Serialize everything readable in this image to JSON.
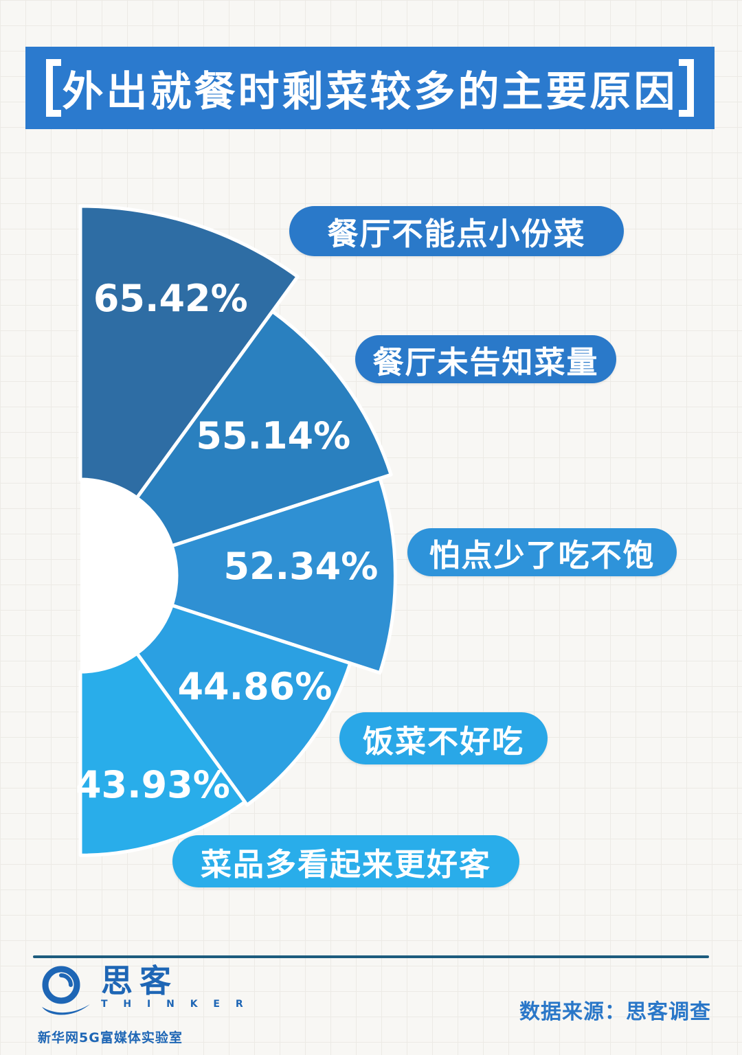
{
  "title": {
    "text": "外出就餐时剩菜较多的主要原因"
  },
  "colors": {
    "banner_bg": "#2b7ace",
    "title_text": "#ffffff",
    "divider": "#1d5c7e",
    "logo_blue": "#1e66b5",
    "source_text": "#2a77c8",
    "slice_separator": "#ffffff"
  },
  "chart_data": {
    "type": "pie",
    "subtype": "nightingale-rose-half-fan",
    "unit": "%",
    "title": "外出就餐时剩菜较多的主要原因",
    "legend_position": "labels-beside-slices",
    "grid": "graph-paper-background",
    "series": [
      {
        "label": "餐厅不能点小份菜",
        "value": 65.42,
        "value_label": "65.42%"
      },
      {
        "label": "餐厅未告知菜量",
        "value": 55.14,
        "value_label": "55.14%"
      },
      {
        "label": "怕点少了吃不饱",
        "value": 52.34,
        "value_label": "52.34%"
      },
      {
        "label": "饭菜不好吃",
        "value": 44.86,
        "value_label": "44.86%"
      },
      {
        "label": "菜品多看起来更好客",
        "value": 43.93,
        "value_label": "43.93%"
      }
    ],
    "slice_colors": [
      "#2e6da4",
      "#2a80bf",
      "#2f90d3",
      "#2ba0e2",
      "#29adea"
    ],
    "pill_colors": [
      "#2a79c9",
      "#2a79c9",
      "#2e93da",
      "#29a7e7",
      "#29adea"
    ]
  },
  "footer": {
    "logo_cn": "思客",
    "logo_en": "T H I N K E R",
    "org": "新华网5G富媒体实验室",
    "source": "数据来源：思客调查"
  }
}
